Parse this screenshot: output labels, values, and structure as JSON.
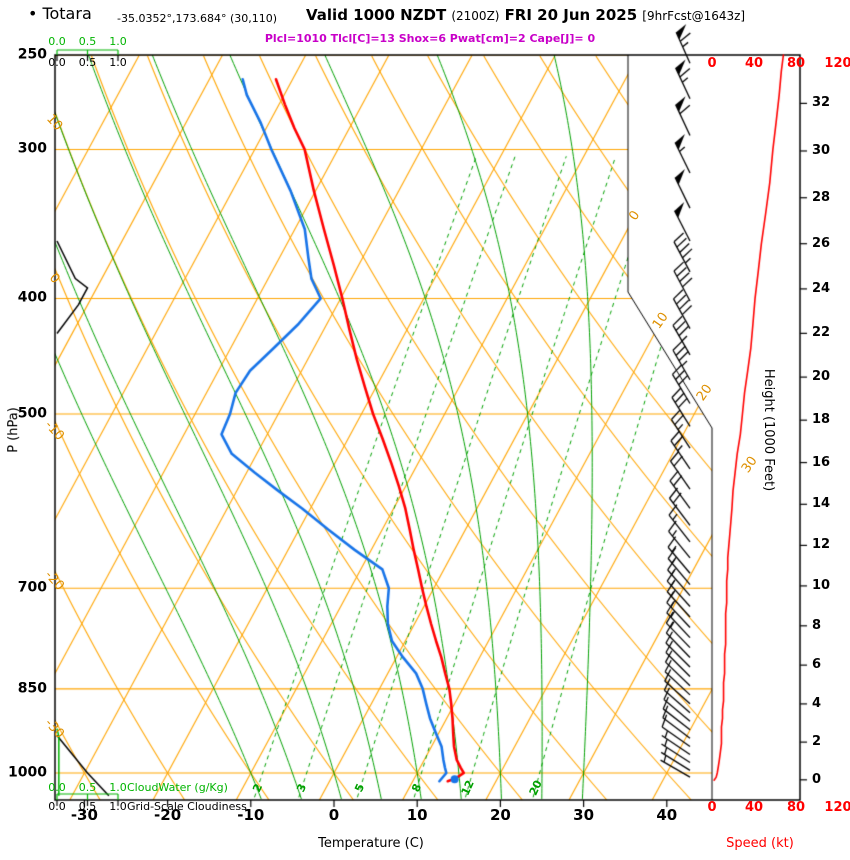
{
  "title": {
    "bullet": "•",
    "station": "Totara",
    "coords": "-35.0352°,173.684° (30,110)",
    "valid_main": "Valid 1000 NZDT",
    "valid_z": "(2100Z)",
    "valid_date": "FRI 20 Jun 2025",
    "fcst": "[9hrFcst@1643z]"
  },
  "indices_line": "Plcl=1010 Tlcl[C]=13 Shox=6 Pwat[cm]=2 Cape[J]= 0",
  "axes": {
    "pressure_title": "P (hPa)",
    "temperature_title": "Temperature (C)",
    "height_title": "Height (1000 Feet)",
    "speed_title": "Speed (kt)",
    "cloudwater_title": "CloudWater (g/Kg)",
    "cloudiness_title": "Grid-Scale Cloudiness",
    "pressure_ticks": [
      250,
      300,
      400,
      500,
      700,
      850,
      1000
    ],
    "temperature_ticks": [
      -30,
      -20,
      -10,
      0,
      10,
      20,
      30,
      40
    ],
    "height_ticks": [
      0,
      2,
      4,
      6,
      8,
      10,
      12,
      14,
      16,
      18,
      20,
      22,
      24,
      26,
      28,
      30,
      32
    ],
    "speed_ticks": [
      0,
      40,
      80,
      120
    ],
    "cloud_scale_ticks": [
      "0.0",
      "0.5",
      "1.0"
    ]
  },
  "colors": {
    "orange": "#FFA500",
    "label_orange": "#DE9000",
    "green": "#00A000",
    "bright_green": "#00B400",
    "red": "#FF0000",
    "blue": "#1874E8",
    "magenta": "#C800C8",
    "black": "#000000"
  },
  "chart_data": {
    "type": "skewt_logp_sounding",
    "pressure_range_hpa": [
      250,
      1050
    ],
    "temperature_axis_range_c": [
      -35,
      45
    ],
    "speed_axis_range_kt": [
      0,
      120
    ],
    "isotherm_labels_c": [
      0,
      10,
      20,
      30
    ],
    "dry_adiabat_labels_c": [
      10,
      0,
      -10,
      -20,
      -30
    ],
    "background": {
      "isotherms_c": {
        "min": -90,
        "max": 40,
        "step": 10
      },
      "dry_adiabats_c": {
        "min": -40,
        "max": 140,
        "step": 10
      },
      "moist_adiabats_c": {
        "min": -10,
        "max": 30,
        "step": 5
      },
      "mixing_ratio_gkg": [
        2,
        3,
        5,
        8,
        12,
        20
      ]
    },
    "temperature_profile_p_c": [
      [
        1016,
        14.2
      ],
      [
        1010,
        15.0
      ],
      [
        1000,
        15.6
      ],
      [
        990,
        14.9
      ],
      [
        975,
        13.9
      ],
      [
        950,
        12.7
      ],
      [
        925,
        11.7
      ],
      [
        900,
        10.7
      ],
      [
        875,
        9.6
      ],
      [
        850,
        8.4
      ],
      [
        825,
        6.9
      ],
      [
        800,
        5.4
      ],
      [
        775,
        3.7
      ],
      [
        750,
        2.0
      ],
      [
        725,
        0.3
      ],
      [
        700,
        -1.4
      ],
      [
        675,
        -3.1
      ],
      [
        650,
        -4.9
      ],
      [
        625,
        -6.7
      ],
      [
        600,
        -8.6
      ],
      [
        575,
        -10.8
      ],
      [
        550,
        -13.2
      ],
      [
        525,
        -15.8
      ],
      [
        500,
        -18.6
      ],
      [
        475,
        -21.3
      ],
      [
        450,
        -24.1
      ],
      [
        425,
        -26.9
      ],
      [
        400,
        -29.8
      ],
      [
        375,
        -33.0
      ],
      [
        350,
        -36.5
      ],
      [
        325,
        -40.2
      ],
      [
        300,
        -44.0
      ],
      [
        288,
        -46.6
      ],
      [
        275,
        -49.3
      ],
      [
        262,
        -52.0
      ]
    ],
    "dewpoint_profile_p_c": [
      [
        1016,
        13.2
      ],
      [
        1000,
        13.5
      ],
      [
        990,
        13.0
      ],
      [
        975,
        12.3
      ],
      [
        950,
        11.2
      ],
      [
        925,
        9.6
      ],
      [
        900,
        8.0
      ],
      [
        875,
        6.6
      ],
      [
        850,
        5.2
      ],
      [
        825,
        3.4
      ],
      [
        800,
        0.8
      ],
      [
        775,
        -1.6
      ],
      [
        750,
        -3.2
      ],
      [
        725,
        -4.4
      ],
      [
        700,
        -5.4
      ],
      [
        675,
        -7.4
      ],
      [
        650,
        -12.0
      ],
      [
        625,
        -16.5
      ],
      [
        600,
        -21.0
      ],
      [
        580,
        -25.0
      ],
      [
        560,
        -29.0
      ],
      [
        540,
        -33.0
      ],
      [
        520,
        -35.5
      ],
      [
        500,
        -35.8
      ],
      [
        480,
        -36.5
      ],
      [
        460,
        -36.2
      ],
      [
        440,
        -34.8
      ],
      [
        420,
        -33.4
      ],
      [
        400,
        -32.4
      ],
      [
        385,
        -34.8
      ],
      [
        370,
        -36.5
      ],
      [
        350,
        -38.8
      ],
      [
        325,
        -43.0
      ],
      [
        300,
        -48.0
      ],
      [
        285,
        -51.0
      ],
      [
        270,
        -54.5
      ],
      [
        262,
        -56.0
      ]
    ],
    "surface_marker": {
      "p": 1012,
      "t": 14.9
    },
    "wind_speed_profile_p_kt": [
      [
        1014,
        2
      ],
      [
        1008,
        4
      ],
      [
        1000,
        5
      ],
      [
        988,
        6
      ],
      [
        975,
        7
      ],
      [
        960,
        8
      ],
      [
        945,
        9
      ],
      [
        930,
        9
      ],
      [
        915,
        9
      ],
      [
        900,
        10
      ],
      [
        885,
        10
      ],
      [
        870,
        11
      ],
      [
        855,
        11
      ],
      [
        840,
        11
      ],
      [
        825,
        12
      ],
      [
        810,
        12
      ],
      [
        795,
        12
      ],
      [
        780,
        13
      ],
      [
        765,
        13
      ],
      [
        750,
        13
      ],
      [
        735,
        13
      ],
      [
        720,
        14
      ],
      [
        705,
        14
      ],
      [
        690,
        14
      ],
      [
        675,
        15
      ],
      [
        660,
        15
      ],
      [
        645,
        16
      ],
      [
        630,
        17
      ],
      [
        615,
        18
      ],
      [
        600,
        19
      ],
      [
        580,
        20
      ],
      [
        560,
        22
      ],
      [
        540,
        24
      ],
      [
        520,
        27
      ],
      [
        500,
        29
      ],
      [
        480,
        31
      ],
      [
        460,
        34
      ],
      [
        440,
        37
      ],
      [
        420,
        39
      ],
      [
        400,
        41
      ],
      [
        380,
        44
      ],
      [
        360,
        47
      ],
      [
        340,
        51
      ],
      [
        320,
        55
      ],
      [
        300,
        58
      ],
      [
        285,
        61
      ],
      [
        270,
        64
      ],
      [
        258,
        66
      ],
      [
        250,
        68
      ]
    ],
    "wind_barbs_p_dir_kt": [
      [
        1008,
        300,
        5
      ],
      [
        995,
        302,
        6
      ],
      [
        980,
        303,
        7
      ],
      [
        965,
        304,
        7
      ],
      [
        950,
        305,
        8
      ],
      [
        935,
        307,
        8
      ],
      [
        920,
        308,
        9
      ],
      [
        905,
        310,
        9
      ],
      [
        890,
        311,
        10
      ],
      [
        875,
        312,
        10
      ],
      [
        860,
        313,
        11
      ],
      [
        845,
        314,
        11
      ],
      [
        830,
        315,
        12
      ],
      [
        815,
        315,
        12
      ],
      [
        800,
        316,
        12
      ],
      [
        785,
        316,
        13
      ],
      [
        770,
        317,
        13
      ],
      [
        755,
        317,
        13
      ],
      [
        740,
        318,
        13
      ],
      [
        725,
        318,
        14
      ],
      [
        710,
        319,
        14
      ],
      [
        695,
        320,
        14
      ],
      [
        680,
        320,
        15
      ],
      [
        660,
        321,
        16
      ],
      [
        640,
        322,
        17
      ],
      [
        620,
        323,
        18
      ],
      [
        600,
        324,
        19
      ],
      [
        578,
        325,
        21
      ],
      [
        556,
        326,
        23
      ],
      [
        534,
        327,
        25
      ],
      [
        512,
        328,
        28
      ],
      [
        490,
        329,
        30
      ],
      [
        468,
        330,
        33
      ],
      [
        446,
        330,
        36
      ],
      [
        424,
        331,
        39
      ],
      [
        402,
        332,
        41
      ],
      [
        380,
        332,
        44
      ],
      [
        358,
        333,
        48
      ],
      [
        336,
        334,
        52
      ],
      [
        314,
        334,
        56
      ],
      [
        292,
        335,
        60
      ],
      [
        272,
        335,
        64
      ],
      [
        254,
        336,
        67
      ]
    ],
    "cloudiness_layers_p_frac": [
      [
        [
          358,
          0
        ],
        [
          385,
          0.3
        ],
        [
          392,
          0.5
        ],
        [
          405,
          0.35
        ],
        [
          428,
          0
        ]
      ],
      [
        [
          930,
          0
        ],
        [
          1000,
          0.5
        ],
        [
          1045,
          0.85
        ]
      ]
    ],
    "cloudwater_profile_p_gkg": [
      [
        918,
        0
      ],
      [
        932,
        0.03
      ],
      [
        1045,
        0.03
      ]
    ]
  }
}
